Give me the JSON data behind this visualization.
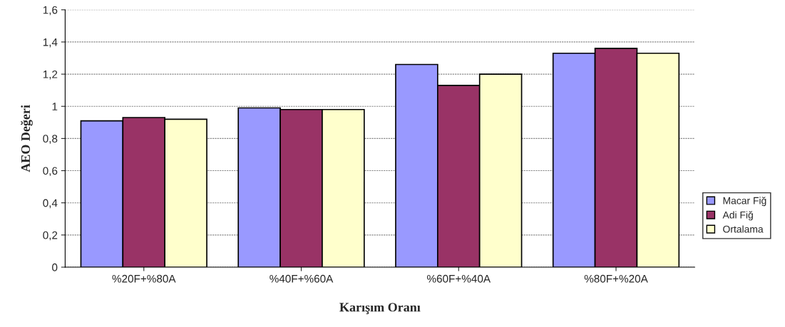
{
  "chart_data": {
    "type": "bar",
    "xlabel": "Karışım Oranı",
    "ylabel": "AEO Değeri",
    "categories": [
      "%20F+%80A",
      "%40F+%60A",
      "%60F+%40A",
      "%80F+%20A"
    ],
    "series": [
      {
        "name": "Macar Fiğ",
        "color": "#9999ff",
        "values": [
          0.91,
          0.99,
          1.26,
          1.33
        ]
      },
      {
        "name": "Adi Fiğ",
        "color": "#993366",
        "values": [
          0.93,
          0.98,
          1.13,
          1.36
        ]
      },
      {
        "name": "Ortalama",
        "color": "#ffffcc",
        "values": [
          0.92,
          0.98,
          1.2,
          1.33
        ]
      }
    ],
    "ylim": [
      0,
      1.6
    ],
    "yticks": [
      0,
      {
        "value": 0.2,
        "label": "0,2"
      },
      {
        "value": 0.4,
        "label": "0,4"
      },
      {
        "value": 0.6,
        "label": "0,6"
      },
      {
        "value": 0.8,
        "label": "0,8"
      },
      1,
      {
        "value": 1.2,
        "label": "1,2"
      },
      {
        "value": 1.4,
        "label": "1,4"
      },
      {
        "value": 1.6,
        "label": "1,6"
      }
    ],
    "grid": "y",
    "legend": "right"
  }
}
